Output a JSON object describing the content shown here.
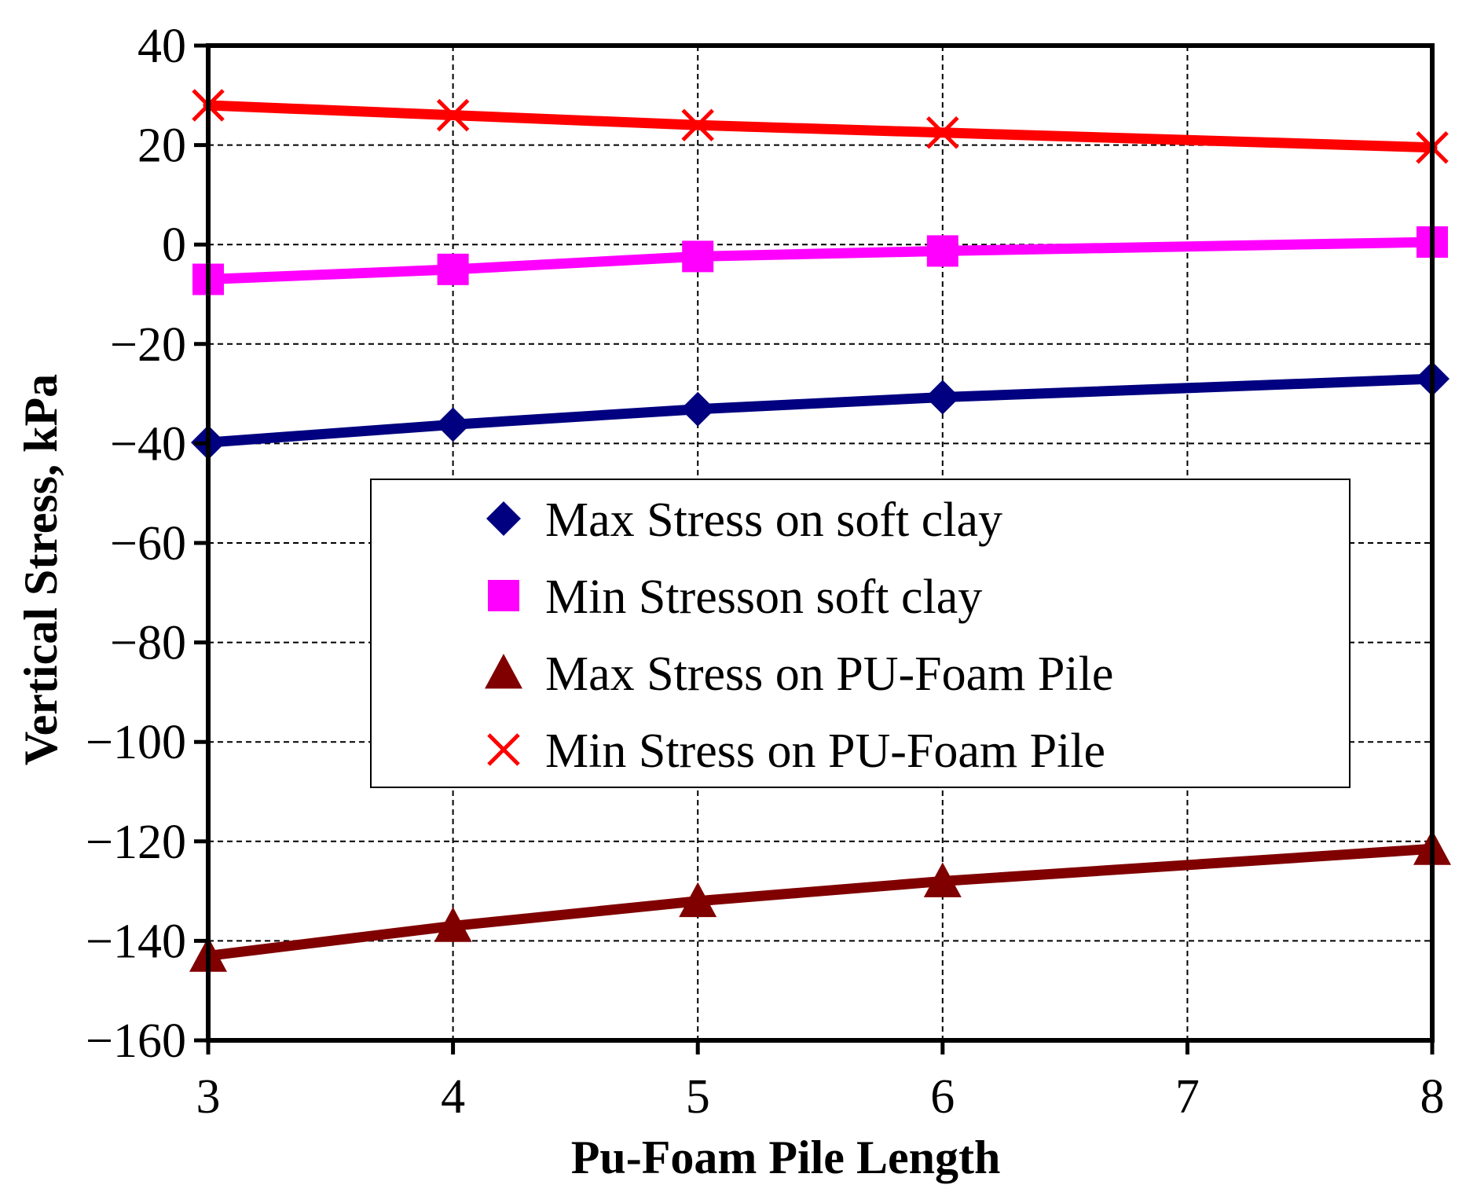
{
  "chart_data": {
    "type": "line",
    "title": "",
    "xlabel": "Pu-Foam Pile Length",
    "ylabel": "Vertical Stress, kPa",
    "xlim": [
      3,
      8
    ],
    "ylim": [
      -160,
      40
    ],
    "xticks": [
      3,
      4,
      5,
      6,
      7,
      8
    ],
    "yticks": [
      40,
      20,
      0,
      -20,
      -40,
      -60,
      -80,
      -100,
      -120,
      -140,
      -160
    ],
    "xtick_labels": [
      "3",
      "4",
      "5",
      "6",
      "7",
      "8"
    ],
    "ytick_labels": [
      "40",
      "20",
      "0",
      "−20",
      "−40",
      "−60",
      "−80",
      "−100",
      "−120",
      "−140",
      "−160"
    ],
    "grid": true,
    "legend_position": "center-right",
    "series": [
      {
        "name": "Max Stress on soft clay",
        "color": "#000080",
        "marker": "diamond",
        "x": [
          3,
          4,
          5,
          6,
          8
        ],
        "values": [
          -39.8,
          -36.2,
          -33.1,
          -30.7,
          -27.0
        ]
      },
      {
        "name": "Min Stresson soft clay",
        "color": "#ff00ff",
        "marker": "square",
        "x": [
          3,
          4,
          5,
          6,
          8
        ],
        "values": [
          -7.0,
          -5.0,
          -2.4,
          -1.3,
          0.5
        ]
      },
      {
        "name": "Max Stress on PU-Foam Pile",
        "color": "#800000",
        "marker": "triangle",
        "x": [
          3,
          4,
          5,
          6,
          8
        ],
        "values": [
          -143.0,
          -137.0,
          -132.0,
          -128.0,
          -121.5
        ]
      },
      {
        "name": "Min Stress on PU-Foam Pile",
        "color": "#ff0000",
        "marker": "x",
        "x": [
          3,
          4,
          5,
          6,
          8
        ],
        "values": [
          28.0,
          26.0,
          24.0,
          22.5,
          19.5
        ]
      }
    ]
  }
}
